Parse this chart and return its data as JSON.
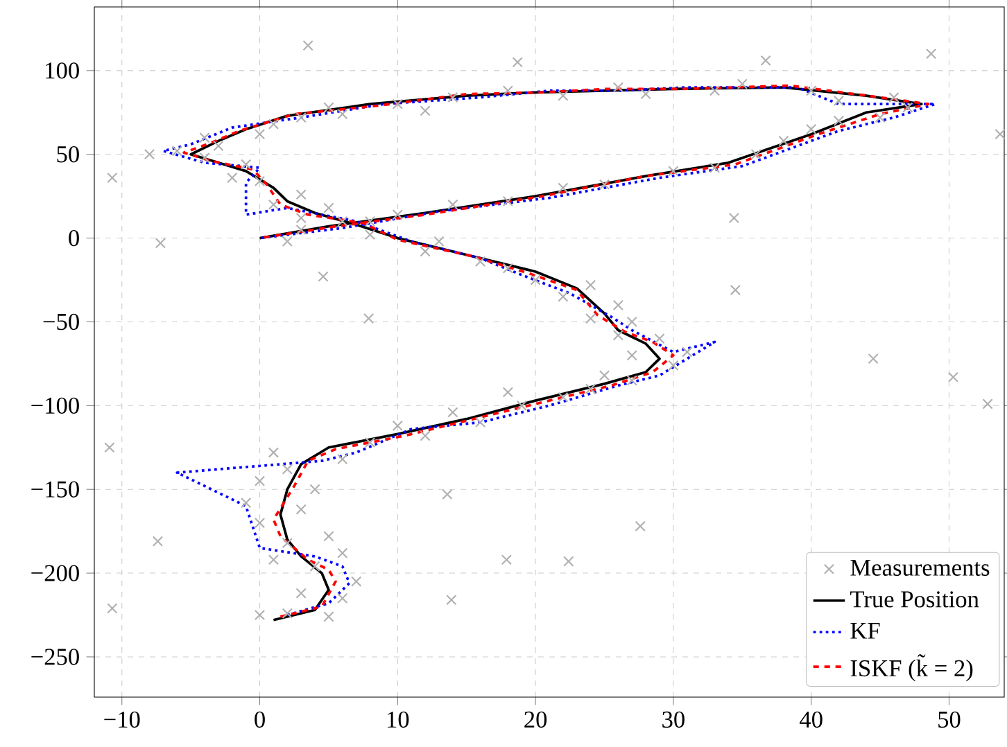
{
  "chart_data": {
    "type": "line",
    "xlim": [
      -12,
      54
    ],
    "ylim": [
      -274,
      138
    ],
    "xticks": [
      {
        "value": -10,
        "label": "−10"
      },
      0,
      10,
      20,
      30,
      40,
      50
    ],
    "yticks": [
      {
        "value": -250,
        "label": "−250"
      },
      {
        "value": -200,
        "label": "−200"
      },
      {
        "value": -150,
        "label": "−150"
      },
      {
        "value": -100,
        "label": "−100"
      },
      {
        "value": -50,
        "label": "−50"
      },
      0,
      50,
      100
    ],
    "grid": true,
    "legend": "bottom right",
    "series": [
      {
        "name": "Measurements",
        "type": "scatter",
        "marker": "cross",
        "color": "#b0b0b0",
        "x": [
          0,
          2,
          5,
          6,
          3,
          7,
          4,
          1,
          6,
          2,
          5,
          0,
          3,
          -1,
          4,
          0,
          2,
          6,
          1,
          8,
          12,
          10,
          16,
          14,
          19,
          22,
          18,
          24,
          27,
          25,
          30,
          27,
          31,
          29,
          26,
          27,
          24,
          26,
          22,
          24,
          20,
          18,
          16,
          12,
          13,
          8,
          6,
          3,
          5,
          1,
          3,
          0,
          -2,
          -1,
          -4,
          -6,
          -8,
          -3,
          -4,
          0,
          1,
          3,
          6,
          5,
          10,
          12,
          14,
          18,
          22,
          26,
          28,
          33,
          35,
          40,
          42,
          46,
          47,
          45,
          42,
          40,
          38,
          36,
          33,
          30,
          25,
          22,
          18,
          14,
          10,
          8,
          3,
          2,
          3.5,
          48.7,
          53.7,
          -10.7,
          -7.2,
          -10.9,
          -10.7,
          -7.4,
          4.6,
          7.9,
          13.6,
          13.9,
          17.9,
          22.4,
          27.6,
          34.5,
          44.5,
          50.3,
          52.8,
          18.7,
          36.7,
          34.4
        ],
        "values": [
          -225,
          -224,
          -226,
          -215,
          -212,
          -205,
          -196,
          -192,
          -188,
          -182,
          -178,
          -170,
          -162,
          -158,
          -150,
          -145,
          -138,
          -132,
          -128,
          -122,
          -118,
          -112,
          -110,
          -104,
          -100,
          -95,
          -92,
          -90,
          -85,
          -82,
          -76,
          -70,
          -68,
          -60,
          -58,
          -50,
          -48,
          -40,
          -35,
          -28,
          -25,
          -18,
          -14,
          -8,
          -2,
          2,
          10,
          12,
          18,
          20,
          26,
          34,
          36,
          44,
          48,
          52,
          50,
          55,
          60,
          62,
          68,
          72,
          74,
          78,
          80,
          76,
          84,
          88,
          85,
          90,
          86,
          88,
          92,
          88,
          82,
          84,
          78,
          72,
          70,
          65,
          58,
          50,
          42,
          40,
          32,
          30,
          22,
          20,
          14,
          10,
          5,
          -2,
          115,
          110,
          62,
          36,
          -3,
          -125,
          -221,
          -181,
          -23,
          -48,
          -153,
          -216,
          -192,
          -193,
          -172,
          -31,
          -72,
          -83,
          -99,
          105,
          106,
          12
        ]
      },
      {
        "name": "True Position",
        "line_style": "solid",
        "color": "#000000",
        "x": [
          1,
          4,
          5,
          4.5,
          3,
          2,
          1.5,
          2,
          3,
          5,
          10,
          15,
          20,
          25,
          28,
          29,
          28,
          26,
          25,
          23,
          20,
          15,
          10,
          7,
          4,
          2,
          1,
          -1,
          -3,
          -5,
          -3,
          -1,
          2,
          8,
          15,
          20,
          25,
          30,
          38,
          44,
          48,
          44,
          40,
          34,
          28,
          20,
          12,
          5,
          0
        ],
        "values": [
          -228,
          -222,
          -210,
          -200,
          -190,
          -180,
          -165,
          -150,
          -135,
          -125,
          -117,
          -108,
          -97,
          -87,
          -80,
          -72,
          -63,
          -55,
          -45,
          -30,
          -20,
          -10,
          0,
          8,
          15,
          22,
          30,
          40,
          45,
          50,
          58,
          65,
          73,
          80,
          85,
          87,
          88,
          89,
          90,
          85,
          80,
          75,
          62,
          45,
          37,
          25,
          15,
          7,
          0
        ]
      },
      {
        "name": "KF",
        "line_style": "dotted",
        "color": "#0000ff",
        "x": [
          2,
          5,
          6.5,
          6,
          4,
          0,
          -1,
          -6,
          4.5,
          7,
          11,
          16,
          21,
          26,
          29,
          33,
          30,
          27,
          25.5,
          22.5,
          19,
          16,
          11,
          7,
          2,
          -1,
          -1,
          0,
          -4,
          -7,
          -5,
          -2,
          3,
          9,
          16,
          21,
          26,
          31,
          39,
          42,
          49,
          46,
          42,
          35,
          29,
          21,
          13,
          6,
          0
        ],
        "values": [
          -225,
          -218,
          -206,
          -196,
          -190,
          -185,
          -160,
          -140,
          -133,
          -128,
          -114,
          -110,
          -100,
          -88,
          -82,
          -62,
          -68,
          -55,
          -47,
          -33,
          -22,
          -12,
          -2,
          10,
          18,
          14,
          33,
          42,
          45,
          52,
          56,
          66,
          72,
          80,
          84,
          88,
          88,
          90,
          90,
          80,
          80,
          72,
          64,
          43,
          36,
          24,
          16,
          6,
          0
        ]
      },
      {
        "name": "ISKF (k̃ = 2)",
        "line_style": "dashed",
        "color": "#ff0000",
        "x": [
          1.5,
          4.5,
          5.5,
          5,
          3.5,
          1.5,
          1,
          2.5,
          3.5,
          5.5,
          10.5,
          15,
          20.5,
          25.5,
          28.5,
          30,
          28.5,
          26.5,
          24.5,
          23,
          19.5,
          15.5,
          10,
          7.5,
          3.5,
          1.5,
          0.5,
          -0.5,
          -3.5,
          -5.5,
          -3.5,
          -1.5,
          2.5,
          8.5,
          15,
          20.5,
          25,
          30.5,
          38.5,
          45,
          48.5,
          45,
          40.5,
          34.5,
          28,
          20.5,
          12,
          5.5,
          0
        ],
        "values": [
          -226,
          -220,
          -205,
          -198,
          -192,
          -178,
          -168,
          -148,
          -133,
          -126,
          -118,
          -109,
          -98,
          -88,
          -80,
          -70,
          -62,
          -56,
          -46,
          -31,
          -21,
          -11,
          -1,
          9,
          14,
          20,
          32,
          41,
          46,
          51,
          57,
          64,
          74,
          79,
          86,
          87,
          89,
          89,
          91,
          84,
          80,
          74,
          62,
          44,
          37,
          25,
          14,
          7,
          0
        ]
      }
    ]
  }
}
